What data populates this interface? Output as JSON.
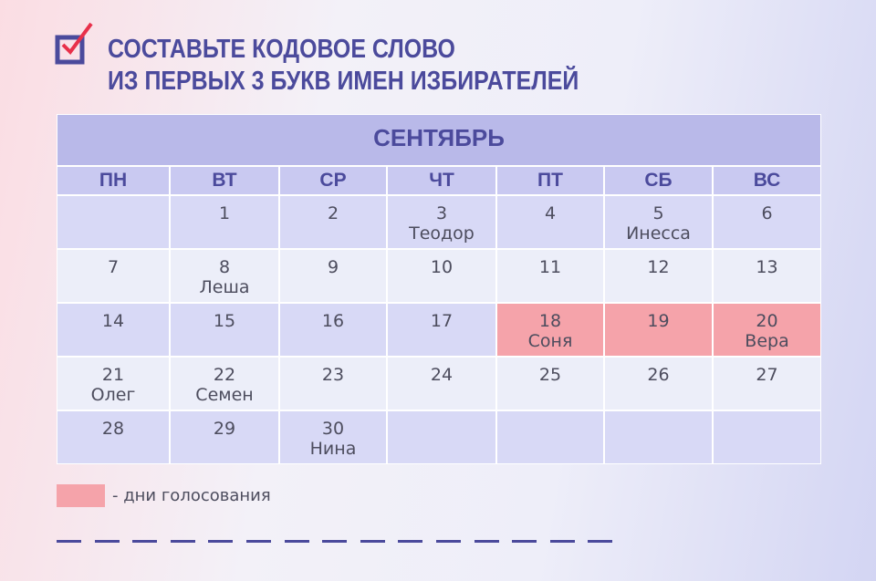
{
  "header": {
    "title_lines": [
      "СОСТАВЬТЕ КОДОВОЕ СЛОВО",
      "ИЗ ПЕРВЫХ 3 БУКВ ИМЕН ИЗБИРАТЕЛЕЙ"
    ]
  },
  "calendar": {
    "month": "СЕНТЯБРЬ",
    "weekdays": [
      "ПН",
      "ВТ",
      "СР",
      "ЧТ",
      "ПТ",
      "СБ",
      "ВС"
    ],
    "weeks": [
      [
        null,
        {
          "day": 1
        },
        {
          "day": 2
        },
        {
          "day": 3,
          "name": "Теодор"
        },
        {
          "day": 4
        },
        {
          "day": 5,
          "name": "Инесса"
        },
        {
          "day": 6
        }
      ],
      [
        {
          "day": 7
        },
        {
          "day": 8,
          "name": "Леша"
        },
        {
          "day": 9
        },
        {
          "day": 10
        },
        {
          "day": 11
        },
        {
          "day": 12
        },
        {
          "day": 13
        }
      ],
      [
        {
          "day": 14
        },
        {
          "day": 15
        },
        {
          "day": 16
        },
        {
          "day": 17
        },
        {
          "day": 18,
          "name": "Соня",
          "voting": true
        },
        {
          "day": 19,
          "voting": true
        },
        {
          "day": 20,
          "name": "Вера",
          "voting": true
        }
      ],
      [
        {
          "day": 21,
          "name": "Олег"
        },
        {
          "day": 22,
          "name": "Семен"
        },
        {
          "day": 23
        },
        {
          "day": 24
        },
        {
          "day": 25
        },
        {
          "day": 26
        },
        {
          "day": 27
        }
      ],
      [
        {
          "day": 28
        },
        {
          "day": 29
        },
        {
          "day": 30,
          "name": "Нина"
        },
        null,
        null,
        null,
        null
      ]
    ]
  },
  "legend": {
    "label": "- дни голосования"
  }
}
